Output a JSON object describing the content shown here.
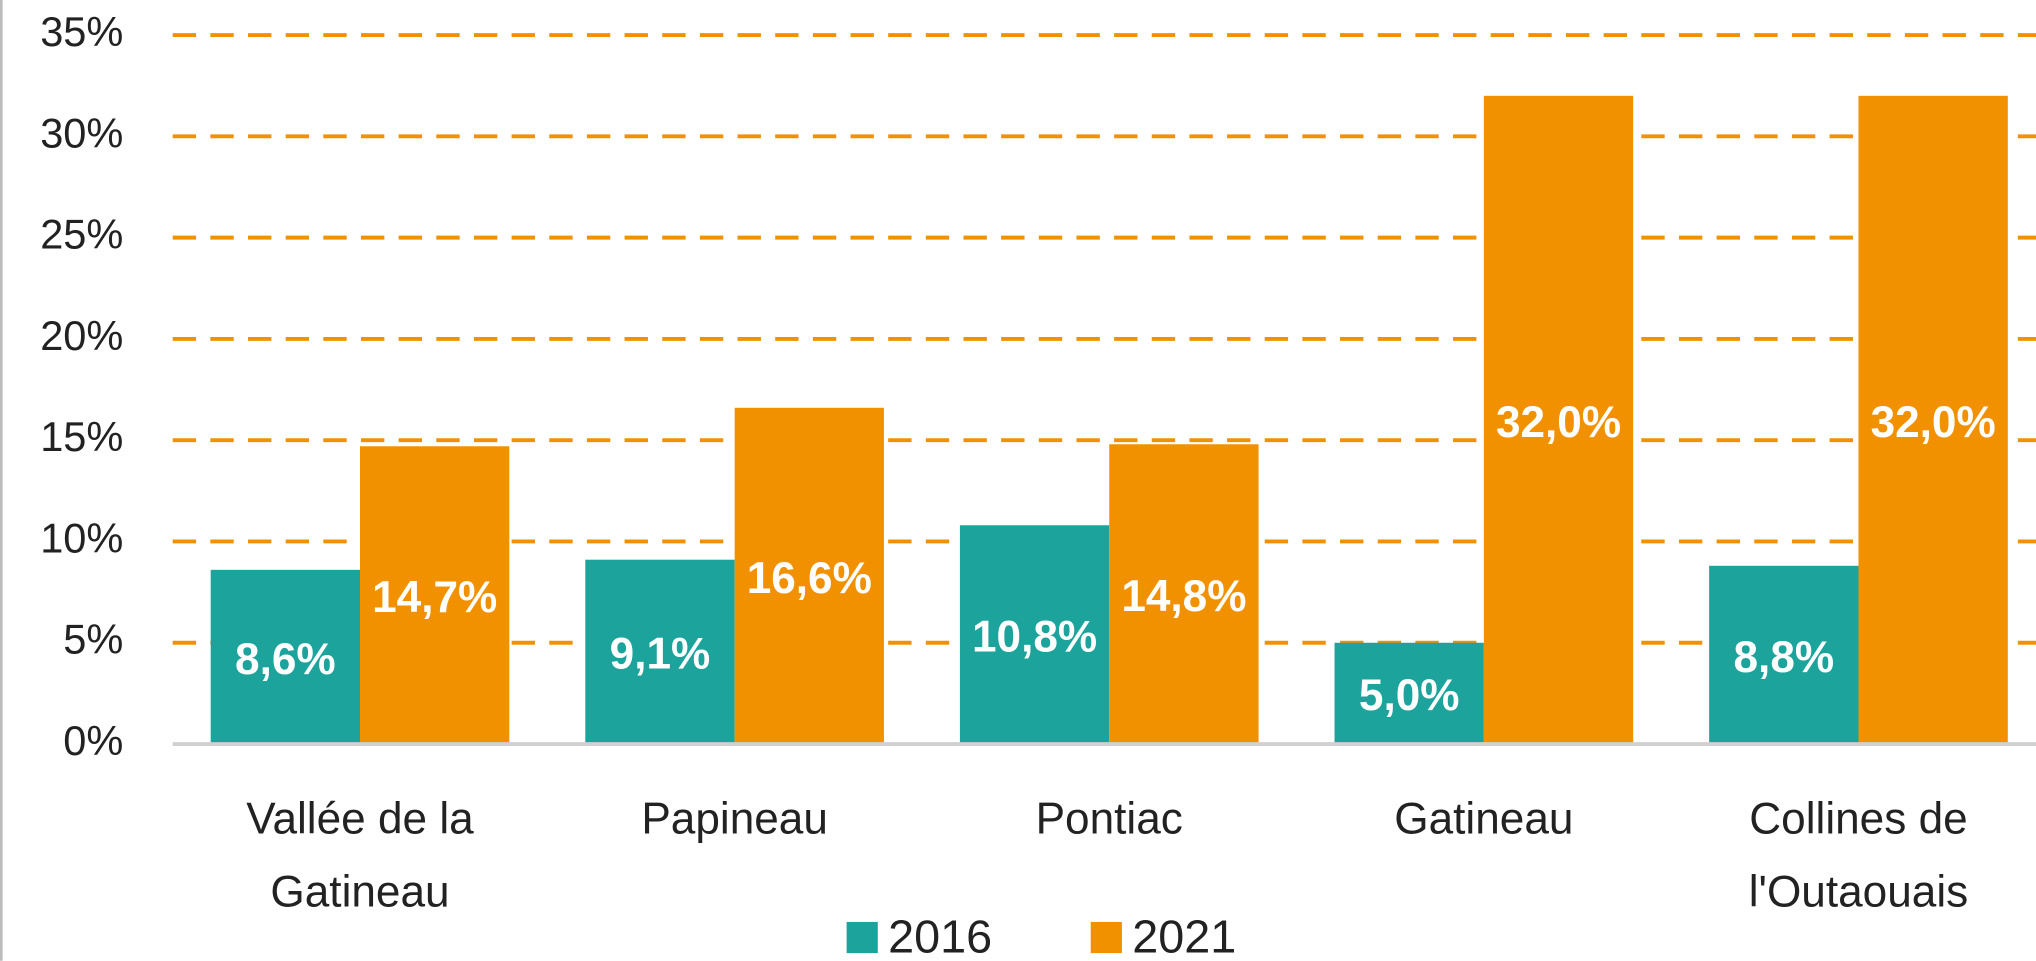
{
  "chart_data": {
    "type": "bar",
    "categories": [
      "Vallée de la Gatineau",
      "Papineau",
      "Pontiac",
      "Gatineau",
      "Collines de l'Outaouais"
    ],
    "series": [
      {
        "name": "2016",
        "color": "#1ba39c",
        "values": [
          8.6,
          9.1,
          10.8,
          5.0,
          8.8
        ],
        "value_labels": [
          "8,6%",
          "9,1%",
          "10,8%",
          "5,0%",
          "8,8%"
        ]
      },
      {
        "name": "2021",
        "color": "#f29100",
        "values": [
          14.7,
          16.6,
          14.8,
          32.0,
          32.0
        ],
        "value_labels": [
          "14,7%",
          "16,6%",
          "14,8%",
          "32,0%",
          "32,0%"
        ]
      }
    ],
    "ylim": [
      0,
      35
    ],
    "yticks": [
      {
        "value": 0,
        "label": "0%"
      },
      {
        "value": 5,
        "label": "5%"
      },
      {
        "value": 10,
        "label": "10%"
      },
      {
        "value": 15,
        "label": "15%"
      },
      {
        "value": 20,
        "label": "20%"
      },
      {
        "value": 25,
        "label": "25%"
      },
      {
        "value": 30,
        "label": "30%"
      },
      {
        "value": 35,
        "label": "35%"
      }
    ],
    "grid": true,
    "grid_color": "#f29100",
    "legend": "bottom"
  }
}
